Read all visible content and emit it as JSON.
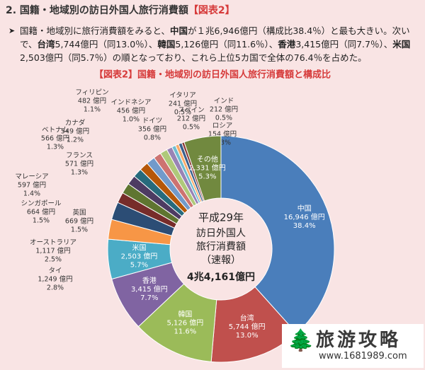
{
  "header": {
    "title": "2. 国籍・地域別の訪日外国人旅行消費額",
    "tag": "【図表2】"
  },
  "bullet": [
    {
      "text": "国籍・地域別に旅行消費額をみると、",
      "bold": false
    },
    {
      "text": "中国",
      "bold": true
    },
    {
      "text": "が１兆6,946億円（構成比38.4％）と最も大きい。次いで、",
      "bold": false
    },
    {
      "text": "台湾",
      "bold": true
    },
    {
      "text": "5,744億円（同13.0％）、",
      "bold": false
    },
    {
      "text": "韓国",
      "bold": true
    },
    {
      "text": "5,126億円（同11.6％）、",
      "bold": false
    },
    {
      "text": "香港",
      "bold": true
    },
    {
      "text": "3,415億円（同7.7％）、",
      "bold": false
    },
    {
      "text": "米国",
      "bold": true
    },
    {
      "text": "2,503億円（同5.7％）の順となっており、これら上位5カ国で全体の76.4％を占めた。",
      "bold": false
    }
  ],
  "watermark": {
    "title": "旅游攻略",
    "url": "www.1681989.com"
  },
  "chart_data": {
    "type": "donut",
    "title": "【図表2】国籍・地域別の訪日外国人旅行消費額と構成比",
    "center_text": [
      "平成29年",
      "訪日外国人",
      "旅行消費額",
      "（速報）",
      "4兆4,161億円"
    ],
    "categories": [
      "中国",
      "台湾",
      "韓国",
      "香港",
      "米国",
      "タイ",
      "オーストラリア",
      "英国",
      "シンガポール",
      "マレーシア",
      "フランス",
      "ベトナム",
      "カナダ",
      "フィリピン",
      "インドネシア",
      "ドイツ",
      "イタリア",
      "スペイン",
      "インド",
      "ロシア",
      "その他"
    ],
    "values": [
      16946,
      5744,
      5126,
      3415,
      2503,
      1249,
      1117,
      669,
      664,
      597,
      571,
      566,
      549,
      482,
      456,
      356,
      241,
      212,
      212,
      154,
      2331
    ],
    "value_labels": [
      "16,946 億円",
      "5,744 億円",
      "5,126 億円",
      "3,415 億円",
      "2,503 億円",
      "1,249 億円",
      "1,117 億円",
      "669 億円",
      "664 億円",
      "597 億円",
      "571 億円",
      "566 億円",
      "549 億円",
      "482 億円",
      "456 億円",
      "356 億円",
      "241 億円",
      "212 億円",
      "212 億円",
      "154 億円",
      "2,331 億円"
    ],
    "shares": [
      38.4,
      13.0,
      11.6,
      7.7,
      5.7,
      2.8,
      2.5,
      1.5,
      1.5,
      1.4,
      1.3,
      1.3,
      1.2,
      1.1,
      1.0,
      0.8,
      0.5,
      0.5,
      0.5,
      0.3,
      5.3
    ],
    "share_labels": [
      "38.4%",
      "13.0%",
      "11.6%",
      "7.7%",
      "5.7%",
      "2.8%",
      "2.5%",
      "1.5%",
      "1.5%",
      "1.4%",
      "1.3%",
      "1.3%",
      "1.2%",
      "1.1%",
      "1.0%",
      "0.8%",
      "0.5%",
      "0.5%",
      "0.5%",
      "0.3%",
      "5.3%"
    ],
    "colors": [
      "#4a7ebb",
      "#c0504d",
      "#9bbb59",
      "#8064a2",
      "#4bacc6",
      "#f79646",
      "#2c4d75",
      "#772c2a",
      "#5f7530",
      "#4d3b62",
      "#276a7c",
      "#b65708",
      "#729aca",
      "#cd7371",
      "#afc97a",
      "#9983b5",
      "#6fbdd1",
      "#f9ab6b",
      "#3a5f8b",
      "#8c3836",
      "#71893f"
    ]
  }
}
